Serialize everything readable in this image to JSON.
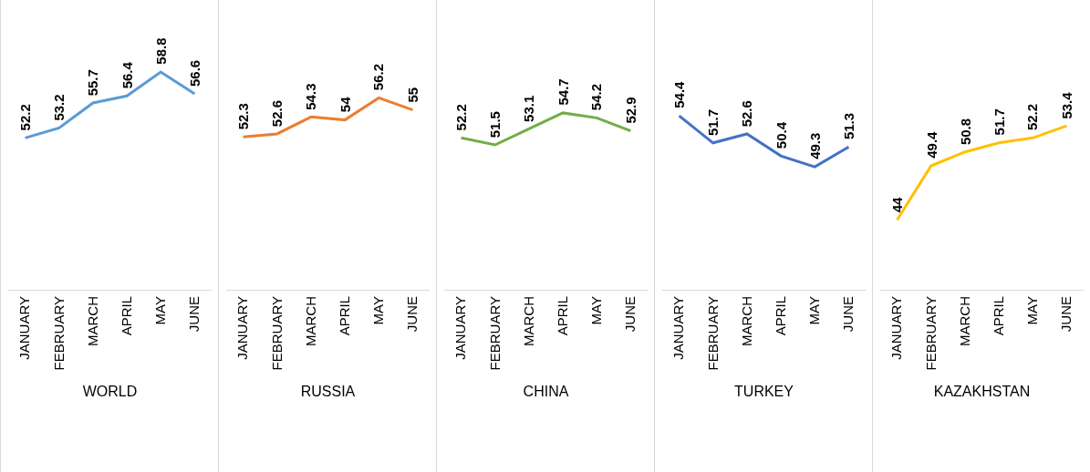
{
  "chart_data": [
    {
      "type": "line",
      "xlabel": "WORLD",
      "categories": [
        "JANUARY",
        "FEBRUARY",
        "MARCH",
        "APRIL",
        "MAY",
        "JUNE"
      ],
      "values": [
        52.2,
        53.2,
        55.7,
        56.4,
        58.8,
        56.6
      ],
      "color": "#5b9bd5",
      "data_labels": true,
      "ylim": [
        37,
        66
      ],
      "tick_labels": "x"
    },
    {
      "type": "line",
      "xlabel": "RUSSIA",
      "categories": [
        "JANUARY",
        "FEBRUARY",
        "MARCH",
        "APRIL",
        "MAY",
        "JUNE"
      ],
      "values": [
        52.3,
        52.6,
        54.3,
        54,
        56.2,
        55
      ],
      "color": "#ed7d31",
      "data_labels": true,
      "ylim": [
        37,
        66
      ],
      "tick_labels": "x"
    },
    {
      "type": "line",
      "xlabel": "CHINA",
      "categories": [
        "JANUARY",
        "FEBRUARY",
        "MARCH",
        "APRIL",
        "MAY",
        "JUNE"
      ],
      "values": [
        52.2,
        51.5,
        53.1,
        54.7,
        54.2,
        52.9
      ],
      "color": "#70ad47",
      "data_labels": true,
      "ylim": [
        37,
        66
      ],
      "tick_labels": "x"
    },
    {
      "type": "line",
      "xlabel": "TURKEY",
      "categories": [
        "JANUARY",
        "FEBRUARY",
        "MARCH",
        "APRIL",
        "MAY",
        "JUNE"
      ],
      "values": [
        54.4,
        51.7,
        52.6,
        50.4,
        49.3,
        51.3
      ],
      "color": "#4472c4",
      "data_labels": true,
      "ylim": [
        37,
        66
      ],
      "tick_labels": "x"
    },
    {
      "type": "line",
      "xlabel": "KAZAKHSTAN",
      "categories": [
        "JANUARY",
        "FEBRUARY",
        "MARCH",
        "APRIL",
        "MAY",
        "JUNE"
      ],
      "values": [
        44,
        49.4,
        50.8,
        51.7,
        52.2,
        53.4
      ],
      "color": "#ffc000",
      "data_labels": true,
      "ylim": [
        37,
        66
      ],
      "tick_labels": "x"
    }
  ]
}
